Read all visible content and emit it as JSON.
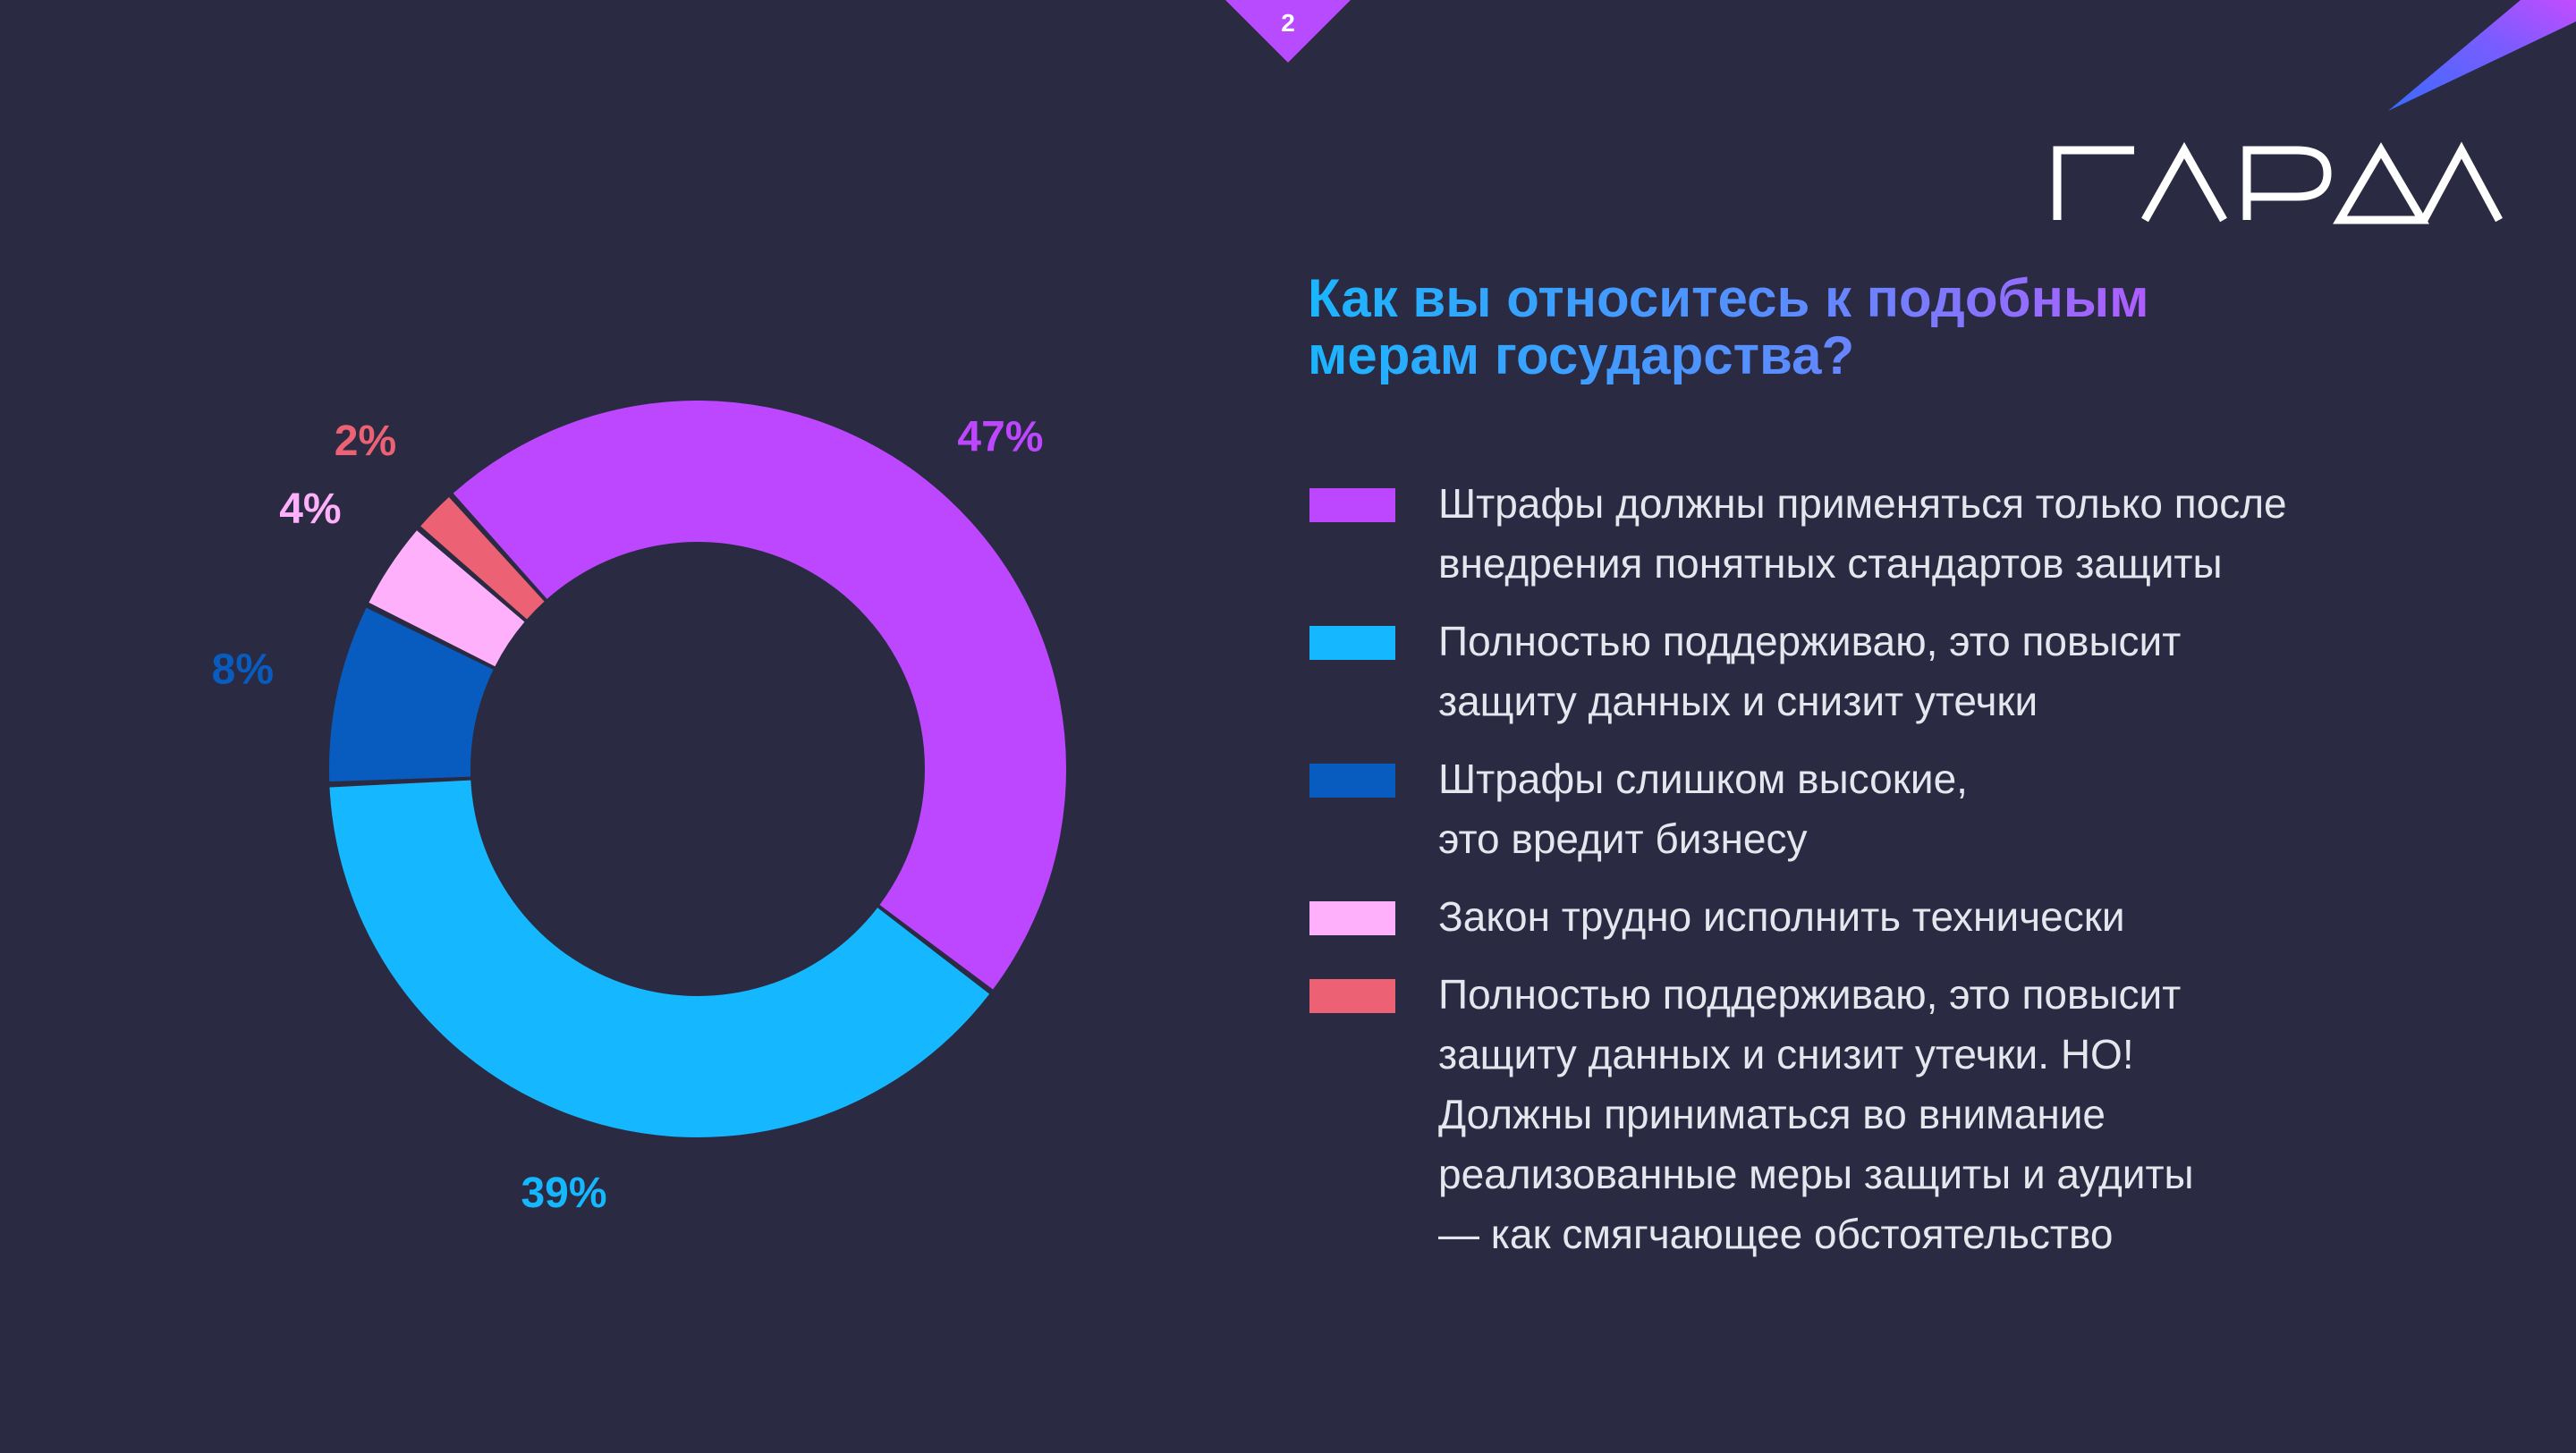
{
  "page": {
    "number": "2"
  },
  "brand": {
    "logo_text": "ГАРДА"
  },
  "colors": {
    "background": "#2a2b42",
    "purple": "#bd47ff",
    "cyan": "#15b8ff",
    "blue": "#095cbf",
    "pink": "#ffb0fa",
    "red": "#ec6173"
  },
  "title": {
    "line1": "Как вы относитесь к подобным",
    "line2": "мерам государства?"
  },
  "chart_data": {
    "type": "pie",
    "style": "donut",
    "title": "Как вы относитесь к подобным мерам государства?",
    "categories": [
      "Штрафы должны применяться только после внедрения понятных стандартов защиты",
      "Полностью поддерживаю, это повысит защиту данных и снизит утечки",
      "Штрафы слишком высокие, это вредит бизнесу",
      "Закон трудно исполнить технически",
      "Полностью поддерживаю, это повысит защиту данных и снизит утечки. НО! Должны приниматься во внимание реализованные меры защиты и аудиты — как смягчающее обстоятельство"
    ],
    "values": [
      47,
      39,
      8,
      4,
      2
    ],
    "labels": [
      "47%",
      "39%",
      "8%",
      "4%",
      "2%"
    ],
    "colors": [
      "#bd47ff",
      "#15b8ff",
      "#095cbf",
      "#ffb0fa",
      "#ec6173"
    ],
    "legend_position": "right"
  },
  "legend": [
    {
      "text": "Штрафы должны применяться только после\nвнедрения понятных стандартов защиты",
      "color": "#bd47ff"
    },
    {
      "text": "Полностью поддерживаю, это повысит\nзащиту данных и снизит утечки",
      "color": "#15b8ff"
    },
    {
      "text": "Штрафы слишком высокие,\nэто вредит бизнесу",
      "color": "#095cbf"
    },
    {
      "text": "Закон трудно исполнить технически",
      "color": "#ffb0fa"
    },
    {
      "text": "Полностью поддерживаю, это повысит\nзащиту данных и снизит утечки. НО!\nДолжны приниматься во внимание\nреализованные меры защиты и аудиты\n— как смягчающее обстоятельство",
      "color": "#ec6173"
    }
  ]
}
